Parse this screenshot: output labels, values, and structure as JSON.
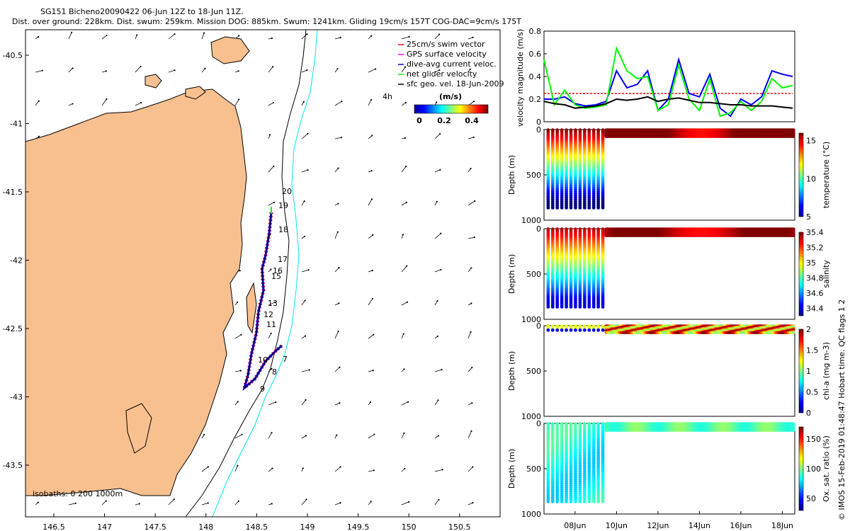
{
  "header": {
    "line1": "SG151 Bicheno20090422 06-Jun 12Z to 18-Jun 11Z.",
    "line2": "Dist. over ground: 228km. Dist. swum: 259km. Mission DOG: 885km. Swum: 1241km. Gliding 19cm/s 157T COG-DAC=9cm/s 175T"
  },
  "footer_note": "© IMOS 15-Feb-2019 01:48:47 Hobart time. QC flags 1 2",
  "map": {
    "xticks": [
      "146.5",
      "147",
      "147.5",
      "148",
      "148.5",
      "149",
      "149.5",
      "150",
      "150.5"
    ],
    "yticks": [
      "-40.5",
      "-41",
      "-41.5",
      "-42",
      "-42.5",
      "-43",
      "-43.5"
    ],
    "isobaths_label": "isobaths: 0   200  1000m",
    "legend": [
      {
        "label": "25cm/s swim vector",
        "color": "#ff0000"
      },
      {
        "label": "GPS surface velocity",
        "color": "#ff00ff"
      },
      {
        "label": "dive-avg current veloc.",
        "color": "#0000ff"
      },
      {
        "label": "net glider velocity",
        "color": "#00ff00"
      },
      {
        "label": "sfc geo. vel. 18-Jun-2009",
        "color": "#000000"
      }
    ],
    "colorbar": {
      "title": "(m/s)",
      "ticks": [
        "0",
        "0.2",
        "0.4"
      ],
      "scale_note": "4h"
    },
    "day_labels": [
      "20",
      "19",
      "18",
      "17",
      "16",
      "15",
      "13",
      "12",
      "11",
      "10",
      "9",
      "8",
      "7"
    ],
    "land_color": "#f9c08f",
    "isobath_200_color": "#000000",
    "isobath_1000_color": "#00e5ee"
  },
  "chart_data": [
    {
      "type": "line",
      "ylabel": "velocity magnitude (m/s)",
      "ylim": [
        0,
        0.8
      ],
      "yticks": [
        "0",
        "0.2",
        "0.4",
        "0.6",
        "0.8"
      ],
      "x": [
        6.5,
        7,
        7.5,
        8,
        8.5,
        9,
        9.5,
        10,
        10.5,
        11,
        11.5,
        12,
        12.5,
        13,
        13.5,
        14,
        14.5,
        15,
        15.5,
        16,
        16.5,
        17,
        17.5,
        18,
        18.5
      ],
      "series": [
        {
          "name": "25cm/s swim vector",
          "color": "#ff0000",
          "values": [
            0.25,
            0.25,
            0.25,
            0.25,
            0.25,
            0.25,
            0.25,
            0.25,
            0.25,
            0.25,
            0.25,
            0.25,
            0.25,
            0.25,
            0.25,
            0.25,
            0.25,
            0.25,
            0.25,
            0.25,
            0.25,
            0.25,
            0.25,
            0.25,
            0.25
          ]
        },
        {
          "name": "dive-avg current veloc.",
          "color": "#0000ff",
          "values": [
            0.2,
            0.2,
            0.22,
            0.16,
            0.14,
            0.15,
            0.18,
            0.45,
            0.3,
            0.33,
            0.45,
            0.1,
            0.2,
            0.55,
            0.25,
            0.22,
            0.42,
            0.12,
            0.05,
            0.2,
            0.15,
            0.22,
            0.45,
            0.42,
            0.4
          ]
        },
        {
          "name": "net glider velocity",
          "color": "#00ff00",
          "values": [
            0.55,
            0.15,
            0.28,
            0.15,
            0.12,
            0.13,
            0.15,
            0.65,
            0.45,
            0.38,
            0.4,
            0.1,
            0.15,
            0.5,
            0.2,
            0.1,
            0.38,
            0.05,
            0.08,
            0.18,
            0.1,
            0.18,
            0.38,
            0.3,
            0.32
          ]
        },
        {
          "name": "sfc geo. vel. 18-Jun-2009",
          "color": "#000000",
          "values": [
            0.18,
            0.16,
            0.15,
            0.12,
            0.13,
            0.14,
            0.16,
            0.2,
            0.19,
            0.2,
            0.22,
            0.18,
            0.2,
            0.21,
            0.19,
            0.17,
            0.17,
            0.16,
            0.15,
            0.15,
            0.14,
            0.14,
            0.14,
            0.13,
            0.12
          ]
        }
      ]
    },
    {
      "type": "scatter",
      "ylabel": "Depth (m)",
      "yticks": [
        "0",
        "500",
        "1000"
      ],
      "ylim": [
        1000,
        0
      ],
      "colorbar_label": "temperature (°C)",
      "colorbar_ticks": [
        "15",
        "10",
        "5"
      ],
      "values_surface_deep": [
        16,
        5
      ],
      "transition_day": 9.5
    },
    {
      "type": "scatter",
      "ylabel": "Depth (m)",
      "yticks": [
        "0",
        "500",
        "1000"
      ],
      "ylim": [
        1000,
        0
      ],
      "colorbar_label": "salinity",
      "colorbar_ticks": [
        "35.4",
        "35.2",
        "35",
        "34.8",
        "34.6",
        "34.4"
      ],
      "values_surface_deep": [
        35.35,
        34.4
      ],
      "transition_day": 9.5
    },
    {
      "type": "scatter",
      "ylabel": "Depth (m)",
      "yticks": [
        "0",
        "500",
        "1000"
      ],
      "ylim": [
        1000,
        0
      ],
      "colorbar_label": "chl-a (mg m-3)",
      "colorbar_ticks": [
        "2",
        "1.5",
        "1",
        "0.5",
        "0"
      ],
      "values_surface_deep": [
        2,
        0.2
      ],
      "transition_day": 9.5
    },
    {
      "type": "scatter",
      "ylabel": "Depth (m)",
      "yticks": [
        "0",
        "500",
        "1000"
      ],
      "ylim": [
        1000,
        0
      ],
      "colorbar_label": "Ox. sat. ratio (%)",
      "colorbar_ticks": [
        "150",
        "100",
        "50"
      ],
      "values_surface_deep": [
        90,
        70
      ],
      "transition_day": 9.5,
      "xticks": [
        "08Jun",
        "10Jun",
        "12Jun",
        "14Jun",
        "16Jun",
        "18Jun"
      ]
    }
  ]
}
